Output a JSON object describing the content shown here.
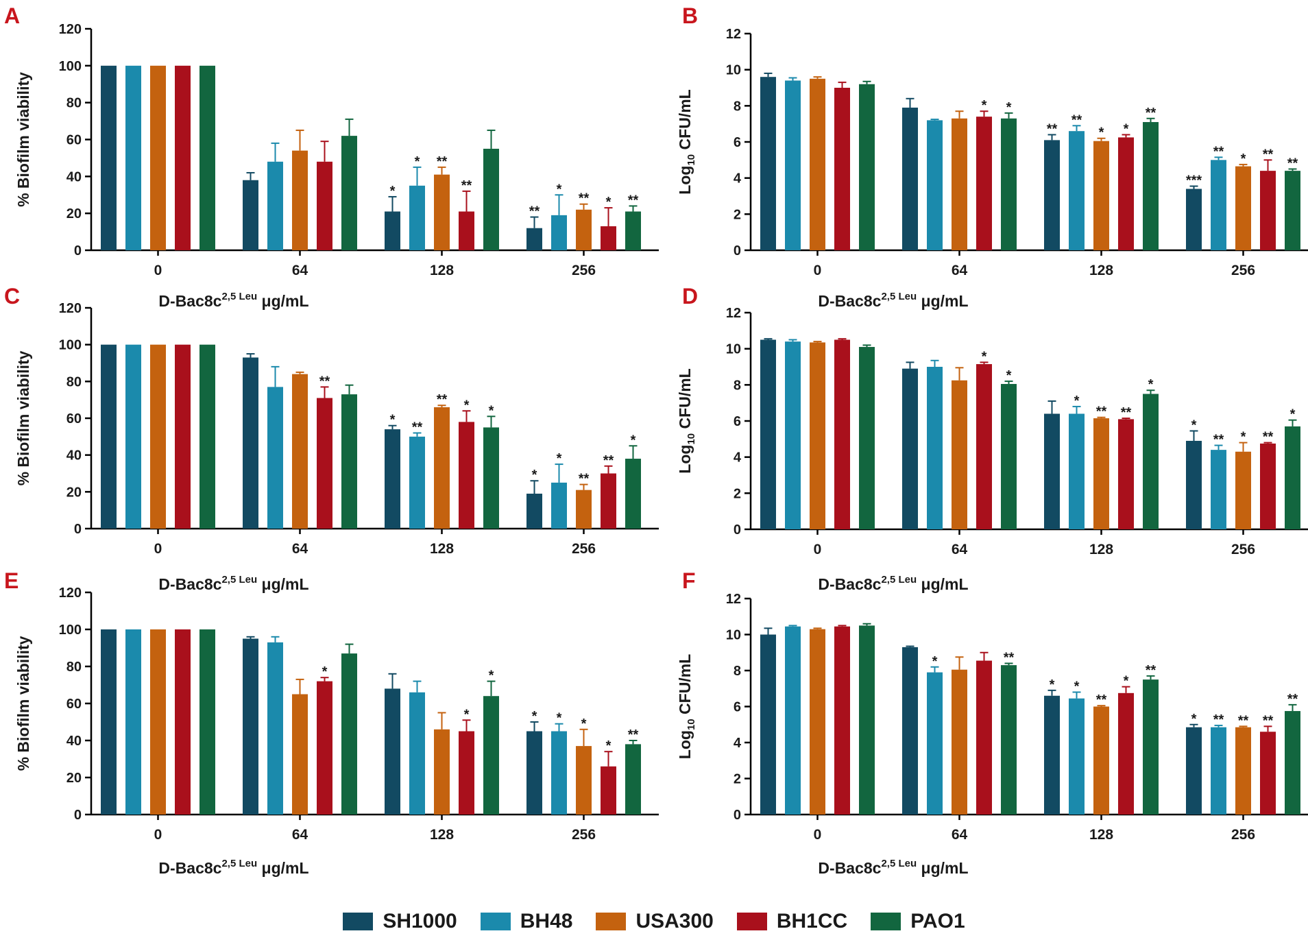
{
  "legend": [
    {
      "name": "SH1000",
      "color": "#124a62"
    },
    {
      "name": "BH48",
      "color": "#1b8aac"
    },
    {
      "name": "USA300",
      "color": "#c4620f"
    },
    {
      "name": "BH1CC",
      "color": "#a9101c"
    },
    {
      "name": "PAO1",
      "color": "#12663f"
    }
  ],
  "chart_data": [
    {
      "panel": "A",
      "type": "bar",
      "ylabel": "% Biofilm viability",
      "xlabel": "D-Bac8c",
      "xlabel_sup": "2,5 Leu",
      "xlabel_unit": "μg/mL",
      "ylim": [
        0,
        120
      ],
      "yticks": [
        0,
        20,
        40,
        60,
        80,
        100,
        120
      ],
      "categories": [
        "0",
        "64",
        "128",
        "256"
      ],
      "series": [
        {
          "name": "SH1000",
          "values": [
            100,
            38,
            21,
            12
          ],
          "errors": [
            0,
            4,
            8,
            6
          ],
          "sig": [
            "",
            "",
            "*",
            "**"
          ]
        },
        {
          "name": "BH48",
          "values": [
            100,
            48,
            35,
            19
          ],
          "errors": [
            0,
            10,
            10,
            11
          ],
          "sig": [
            "",
            "",
            "*",
            "*"
          ]
        },
        {
          "name": "USA300",
          "values": [
            100,
            54,
            41,
            22
          ],
          "errors": [
            0,
            11,
            4,
            3
          ],
          "sig": [
            "",
            "",
            "**",
            "**"
          ]
        },
        {
          "name": "BH1CC",
          "values": [
            100,
            48,
            21,
            13
          ],
          "errors": [
            0,
            11,
            11,
            10
          ],
          "sig": [
            "",
            "",
            "**",
            "*"
          ]
        },
        {
          "name": "PAO1",
          "values": [
            100,
            62,
            55,
            21
          ],
          "errors": [
            0,
            9,
            10,
            3
          ],
          "sig": [
            "",
            "",
            "",
            "**"
          ]
        }
      ]
    },
    {
      "panel": "B",
      "type": "bar",
      "ylabel": "Log",
      "ylabel_sub": "10",
      "ylabel_rest": " CFU/mL",
      "xlabel": "D-Bac8c",
      "xlabel_sup": "2,5 Leu",
      "xlabel_unit": "μg/mL",
      "ylim": [
        0,
        12
      ],
      "yticks": [
        0,
        2,
        4,
        6,
        8,
        10,
        12
      ],
      "categories": [
        "0",
        "64",
        "128",
        "256"
      ],
      "series": [
        {
          "name": "SH1000",
          "values": [
            9.6,
            7.9,
            6.1,
            3.4
          ],
          "errors": [
            0.2,
            0.5,
            0.3,
            0.15
          ],
          "sig": [
            "",
            "",
            "**",
            "***"
          ]
        },
        {
          "name": "BH48",
          "values": [
            9.4,
            7.2,
            6.6,
            5.0
          ],
          "errors": [
            0.15,
            0.05,
            0.3,
            0.15
          ],
          "sig": [
            "",
            "",
            "**",
            "**"
          ]
        },
        {
          "name": "USA300",
          "values": [
            9.5,
            7.3,
            6.05,
            4.65
          ],
          "errors": [
            0.1,
            0.4,
            0.15,
            0.1
          ],
          "sig": [
            "",
            "",
            "*",
            "*"
          ]
        },
        {
          "name": "BH1CC",
          "values": [
            9.0,
            7.4,
            6.25,
            4.4
          ],
          "errors": [
            0.3,
            0.3,
            0.15,
            0.6
          ],
          "sig": [
            "",
            "*",
            "*",
            "**"
          ]
        },
        {
          "name": "PAO1",
          "values": [
            9.2,
            7.3,
            7.1,
            4.4
          ],
          "errors": [
            0.15,
            0.3,
            0.2,
            0.1
          ],
          "sig": [
            "",
            "*",
            "**",
            "**"
          ]
        }
      ]
    },
    {
      "panel": "C",
      "type": "bar",
      "ylabel": "% Biofilm viability",
      "xlabel": "D-Bac8c",
      "xlabel_sup": "2,5 Leu",
      "xlabel_unit": "μg/mL",
      "ylim": [
        0,
        120
      ],
      "yticks": [
        0,
        20,
        40,
        60,
        80,
        100,
        120
      ],
      "categories": [
        "0",
        "64",
        "128",
        "256"
      ],
      "series": [
        {
          "name": "SH1000",
          "values": [
            100,
            93,
            54,
            19
          ],
          "errors": [
            0,
            2,
            2,
            7
          ],
          "sig": [
            "",
            "",
            "*",
            "*"
          ]
        },
        {
          "name": "BH48",
          "values": [
            100,
            77,
            50,
            25
          ],
          "errors": [
            0,
            11,
            2,
            10
          ],
          "sig": [
            "",
            "",
            "**",
            "*"
          ]
        },
        {
          "name": "USA300",
          "values": [
            100,
            84,
            66,
            21
          ],
          "errors": [
            0,
            1,
            1,
            3
          ],
          "sig": [
            "",
            "",
            "**",
            "**"
          ]
        },
        {
          "name": "BH1CC",
          "values": [
            100,
            71,
            58,
            30
          ],
          "errors": [
            0,
            6,
            6,
            4
          ],
          "sig": [
            "",
            "**",
            "*",
            "**"
          ]
        },
        {
          "name": "PAO1",
          "values": [
            100,
            73,
            55,
            38
          ],
          "errors": [
            0,
            5,
            6,
            7
          ],
          "sig": [
            "",
            "",
            "*",
            "*"
          ]
        }
      ]
    },
    {
      "panel": "D",
      "type": "bar",
      "ylabel": "Log",
      "ylabel_sub": "10",
      "ylabel_rest": " CFU/mL",
      "xlabel": "D-Bac8c",
      "xlabel_sup": "2,5 Leu",
      "xlabel_unit": "μg/mL",
      "ylim": [
        0,
        12
      ],
      "yticks": [
        0,
        2,
        4,
        6,
        8,
        10,
        12
      ],
      "categories": [
        "0",
        "64",
        "128",
        "256"
      ],
      "series": [
        {
          "name": "SH1000",
          "values": [
            10.5,
            8.9,
            6.4,
            4.9
          ],
          "errors": [
            0.05,
            0.35,
            0.7,
            0.55
          ],
          "sig": [
            "",
            "",
            "",
            "*"
          ]
        },
        {
          "name": "BH48",
          "values": [
            10.4,
            9.0,
            6.4,
            4.4
          ],
          "errors": [
            0.1,
            0.35,
            0.4,
            0.25
          ],
          "sig": [
            "",
            "",
            "*",
            "**"
          ]
        },
        {
          "name": "USA300",
          "values": [
            10.35,
            8.25,
            6.15,
            4.3
          ],
          "errors": [
            0.05,
            0.7,
            0.05,
            0.5
          ],
          "sig": [
            "",
            "",
            "**",
            "*"
          ]
        },
        {
          "name": "BH1CC",
          "values": [
            10.5,
            9.15,
            6.1,
            4.75
          ],
          "errors": [
            0.05,
            0.1,
            0.05,
            0.05
          ],
          "sig": [
            "",
            "*",
            "**",
            "**"
          ]
        },
        {
          "name": "PAO1",
          "values": [
            10.1,
            8.05,
            7.5,
            5.7
          ],
          "errors": [
            0.1,
            0.15,
            0.2,
            0.35
          ],
          "sig": [
            "",
            "*",
            "*",
            "*"
          ]
        }
      ]
    },
    {
      "panel": "E",
      "type": "bar",
      "ylabel": "% Biofilm viability",
      "xlabel": "D-Bac8c",
      "xlabel_sup": "2,5 Leu",
      "xlabel_unit": "μg/mL",
      "ylim": [
        0,
        120
      ],
      "yticks": [
        0,
        20,
        40,
        60,
        80,
        100,
        120
      ],
      "categories": [
        "0",
        "64",
        "128",
        "256"
      ],
      "series": [
        {
          "name": "SH1000",
          "values": [
            100,
            95,
            68,
            45
          ],
          "errors": [
            0,
            1,
            8,
            5
          ],
          "sig": [
            "",
            "",
            "",
            "*"
          ]
        },
        {
          "name": "BH48",
          "values": [
            100,
            93,
            66,
            45
          ],
          "errors": [
            0,
            3,
            6,
            4
          ],
          "sig": [
            "",
            "",
            "",
            "*"
          ]
        },
        {
          "name": "USA300",
          "values": [
            100,
            65,
            46,
            37
          ],
          "errors": [
            0,
            8,
            9,
            9
          ],
          "sig": [
            "",
            "",
            "",
            "*"
          ]
        },
        {
          "name": "BH1CC",
          "values": [
            100,
            72,
            45,
            26
          ],
          "errors": [
            0,
            2,
            6,
            8
          ],
          "sig": [
            "",
            "*",
            "*",
            "*"
          ]
        },
        {
          "name": "PAO1",
          "values": [
            100,
            87,
            64,
            38
          ],
          "errors": [
            0,
            5,
            8,
            2
          ],
          "sig": [
            "",
            "",
            "*",
            "**"
          ]
        }
      ]
    },
    {
      "panel": "F",
      "type": "bar",
      "ylabel": "Log",
      "ylabel_sub": "10",
      "ylabel_rest": " CFU/mL",
      "xlabel": "D-Bac8c",
      "xlabel_sup": "2,5 Leu",
      "xlabel_unit": "μg/mL",
      "ylim": [
        0,
        12
      ],
      "yticks": [
        0,
        2,
        4,
        6,
        8,
        10,
        12
      ],
      "categories": [
        "0",
        "64",
        "128",
        "256"
      ],
      "series": [
        {
          "name": "SH1000",
          "values": [
            10.0,
            9.3,
            6.6,
            4.85
          ],
          "errors": [
            0.35,
            0.05,
            0.3,
            0.15
          ],
          "sig": [
            "",
            "",
            "*",
            "*"
          ]
        },
        {
          "name": "BH48",
          "values": [
            10.45,
            7.9,
            6.45,
            4.85
          ],
          "errors": [
            0.05,
            0.3,
            0.35,
            0.1
          ],
          "sig": [
            "",
            "*",
            "*",
            "**"
          ]
        },
        {
          "name": "USA300",
          "values": [
            10.3,
            8.05,
            6.0,
            4.85
          ],
          "errors": [
            0.05,
            0.7,
            0.05,
            0.05
          ],
          "sig": [
            "",
            "",
            "**",
            "**"
          ]
        },
        {
          "name": "BH1CC",
          "values": [
            10.45,
            8.55,
            6.75,
            4.6
          ],
          "errors": [
            0.05,
            0.45,
            0.35,
            0.3
          ],
          "sig": [
            "",
            "",
            "*",
            "**"
          ]
        },
        {
          "name": "PAO1",
          "values": [
            10.5,
            8.3,
            7.5,
            5.75
          ],
          "errors": [
            0.1,
            0.1,
            0.2,
            0.35
          ],
          "sig": [
            "",
            "**",
            "**",
            "**"
          ]
        }
      ]
    }
  ]
}
